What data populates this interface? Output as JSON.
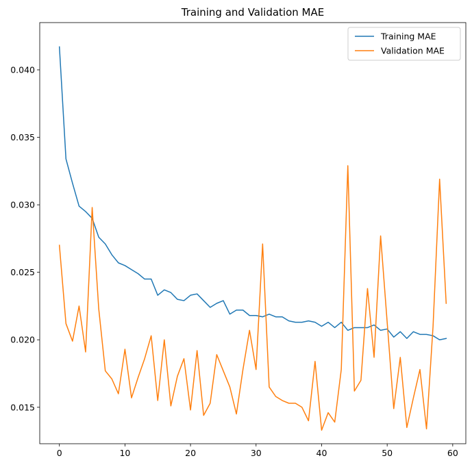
{
  "chart_data": {
    "type": "line",
    "title": "Training and Validation MAE",
    "xlabel": "",
    "ylabel": "",
    "xlim": [
      -3,
      62
    ],
    "ylim": [
      0.0123,
      0.0435
    ],
    "xticks": [
      0,
      10,
      20,
      30,
      40,
      50,
      60
    ],
    "yticks": [
      0.015,
      0.02,
      0.025,
      0.03,
      0.035,
      0.04
    ],
    "ytick_labels": [
      "0.015",
      "0.020",
      "0.025",
      "0.030",
      "0.035",
      "0.040"
    ],
    "grid": false,
    "legend_position": "top-right",
    "x": [
      0,
      1,
      2,
      3,
      4,
      5,
      6,
      7,
      8,
      9,
      10,
      11,
      12,
      13,
      14,
      15,
      16,
      17,
      18,
      19,
      20,
      21,
      22,
      23,
      24,
      25,
      26,
      27,
      28,
      29,
      30,
      31,
      32,
      33,
      34,
      35,
      36,
      37,
      38,
      39,
      40,
      41,
      42,
      43,
      44,
      45,
      46,
      47,
      48,
      49,
      50,
      51,
      52,
      53,
      54,
      55,
      56,
      57,
      58,
      59
    ],
    "series": [
      {
        "name": "Training MAE",
        "color": "#1f77b4",
        "values": [
          0.0417,
          0.0334,
          0.0316,
          0.0299,
          0.0295,
          0.029,
          0.0276,
          0.0271,
          0.0263,
          0.0257,
          0.0255,
          0.0252,
          0.0249,
          0.0245,
          0.0245,
          0.0233,
          0.0237,
          0.0235,
          0.023,
          0.0229,
          0.0233,
          0.0234,
          0.0229,
          0.0224,
          0.0227,
          0.0229,
          0.0219,
          0.0222,
          0.0222,
          0.0218,
          0.0218,
          0.0217,
          0.0219,
          0.0217,
          0.0217,
          0.0214,
          0.0213,
          0.0213,
          0.0214,
          0.0213,
          0.021,
          0.0213,
          0.0209,
          0.0213,
          0.0207,
          0.0209,
          0.0209,
          0.0209,
          0.0211,
          0.0207,
          0.0208,
          0.0202,
          0.0206,
          0.0201,
          0.0206,
          0.0204,
          0.0204,
          0.0203,
          0.02,
          0.0201
        ]
      },
      {
        "name": "Validation MAE",
        "color": "#ff7f0e",
        "values": [
          0.027,
          0.0212,
          0.0199,
          0.0225,
          0.0191,
          0.0298,
          0.0223,
          0.0177,
          0.0171,
          0.016,
          0.0193,
          0.0157,
          0.0172,
          0.0186,
          0.0203,
          0.0155,
          0.02,
          0.0151,
          0.0173,
          0.0186,
          0.0148,
          0.0192,
          0.0144,
          0.0153,
          0.0189,
          0.0177,
          0.0165,
          0.0145,
          0.0178,
          0.0207,
          0.0178,
          0.0271,
          0.0165,
          0.0158,
          0.0155,
          0.0153,
          0.0153,
          0.015,
          0.014,
          0.0184,
          0.0133,
          0.0146,
          0.0139,
          0.0178,
          0.0329,
          0.0162,
          0.017,
          0.0238,
          0.0187,
          0.0277,
          0.0213,
          0.0149,
          0.0187,
          0.0135,
          0.0157,
          0.0178,
          0.0134,
          0.021,
          0.0319,
          0.0227
        ]
      }
    ]
  }
}
